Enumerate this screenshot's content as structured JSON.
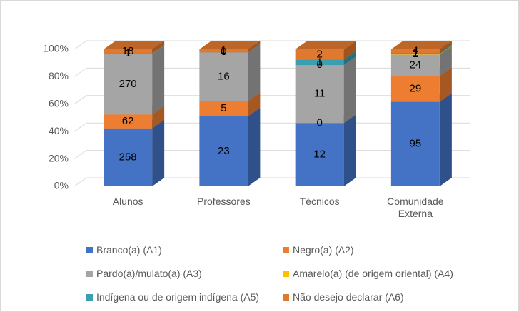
{
  "chart_data": {
    "type": "bar",
    "stacking": "percent",
    "categories": [
      "Alunos",
      "Professores",
      "Técnicos",
      "Comunidade Externa"
    ],
    "series": [
      {
        "name": "Branco(a) (A1)",
        "color": "#4472c4",
        "values": [
          258,
          23,
          12,
          95
        ]
      },
      {
        "name": "Negro(a) (A2)",
        "color": "#ed7d31",
        "values": [
          62,
          5,
          0,
          29
        ]
      },
      {
        "name": "Pardo(a)/mulato(a) (A3)",
        "color": "#a5a5a5",
        "values": [
          270,
          16,
          11,
          24
        ]
      },
      {
        "name": "Amarelo(a) (de origem oriental) (A4)",
        "color": "#ffc000",
        "values": [
          1,
          0,
          0,
          1
        ]
      },
      {
        "name": "Indígena ou de origem indígena (A5)",
        "color": "#3a9fb0",
        "values": [
          1,
          0,
          1,
          1
        ]
      },
      {
        "name": "Não desejo declarar (A6)",
        "color": "#e0782f",
        "values": [
          18,
          1,
          2,
          4
        ]
      }
    ],
    "ylim": [
      0,
      100
    ],
    "yticks": [
      {
        "value": 0,
        "label": "0%"
      },
      {
        "value": 20,
        "label": "20%"
      },
      {
        "value": 40,
        "label": "40%"
      },
      {
        "value": 60,
        "label": "60%"
      },
      {
        "value": 80,
        "label": "80%"
      },
      {
        "value": 100,
        "label": "100%"
      }
    ],
    "grid": true,
    "legend": "bottom"
  }
}
